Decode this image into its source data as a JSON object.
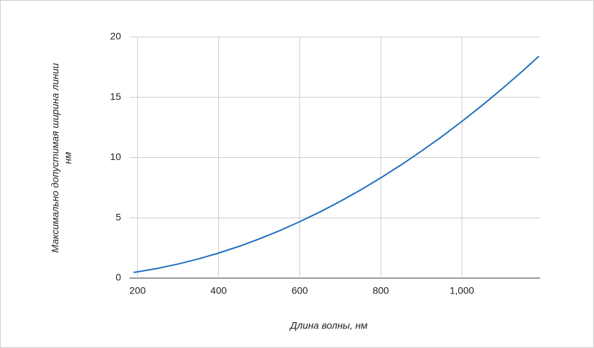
{
  "chart_data": {
    "type": "line",
    "x_label": "Длина волны, нм",
    "y_label": [
      "Максимально допустимая ширина линии",
      "нм"
    ],
    "x": [
      190,
      200,
      250,
      300,
      350,
      400,
      450,
      500,
      550,
      600,
      650,
      700,
      750,
      800,
      850,
      900,
      950,
      1000,
      1050,
      1100,
      1150,
      1190
    ],
    "series": [
      {
        "color": "#1f6ebf",
        "values": [
          0.47,
          0.52,
          0.81,
          1.17,
          1.59,
          2.08,
          2.63,
          3.25,
          3.93,
          4.68,
          5.49,
          6.37,
          7.31,
          8.32,
          9.39,
          10.53,
          11.73,
          13.0,
          14.33,
          15.73,
          17.19,
          18.41
        ]
      }
    ],
    "xlim": [
      180,
      1193
    ],
    "ylim": [
      0,
      20
    ],
    "xticks": [
      200,
      400,
      600,
      800,
      {
        "value": 1000,
        "label": "1,000"
      }
    ],
    "yticks": [
      0,
      5,
      10,
      15,
      20
    ],
    "grid": true
  }
}
